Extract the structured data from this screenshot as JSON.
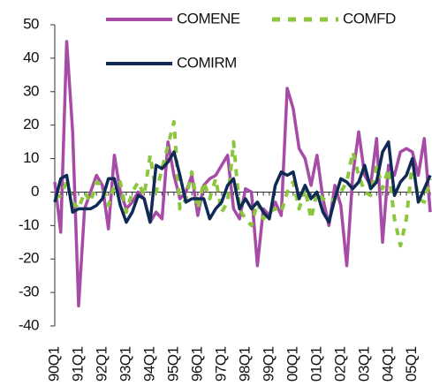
{
  "chart_data": {
    "type": "line",
    "categories": [
      "90Q1",
      null,
      null,
      null,
      "91Q1",
      null,
      null,
      null,
      "92Q1",
      null,
      null,
      null,
      "93Q1",
      null,
      null,
      null,
      "94Q1",
      null,
      null,
      null,
      "95Q1",
      null,
      null,
      null,
      "96Q1",
      null,
      null,
      null,
      "97Q1",
      null,
      null,
      null,
      "98Q1",
      null,
      null,
      null,
      "99Q1",
      null,
      null,
      null,
      "00Q1",
      null,
      null,
      null,
      "01Q1",
      null,
      null,
      null,
      "02Q1",
      null,
      null,
      null,
      "03Q1",
      null,
      null,
      null,
      "04Q1",
      null,
      null,
      null,
      "05Q1",
      null,
      null,
      null
    ],
    "series": [
      {
        "name": "COMENE",
        "color": "#a64ca6",
        "dashed": false,
        "values": [
          3,
          -12,
          45,
          18,
          -34,
          -5,
          0,
          5,
          2,
          -11,
          11,
          0,
          -5,
          -3,
          0,
          -2,
          -9,
          -6,
          -8,
          15,
          5,
          -2,
          0,
          5,
          -7,
          2,
          4,
          5,
          8,
          11,
          -5,
          -8,
          1,
          0,
          -22,
          -5,
          -7,
          -3,
          -7,
          31,
          25,
          13,
          10,
          2,
          11,
          -2,
          -10,
          2,
          -4,
          -22,
          5,
          18,
          5,
          2,
          16,
          -15,
          8,
          5,
          12,
          13,
          12,
          5,
          16,
          -6
        ]
      },
      {
        "name": "COMFD",
        "color": "#8cc63e",
        "dashed": true,
        "values": [
          -2,
          -1,
          3,
          -3,
          -5,
          0,
          -3,
          3,
          2,
          -4,
          2,
          3,
          -6,
          0,
          3,
          -1,
          11,
          0,
          7,
          14,
          21,
          -5,
          -2,
          6,
          -5,
          3,
          -2,
          4,
          -6,
          -3,
          15,
          -5,
          -8,
          -10,
          -3,
          -8,
          -6,
          -5,
          -6,
          0,
          3,
          -5,
          1,
          -8,
          0,
          -2,
          -3,
          -2,
          0,
          3,
          12,
          5,
          0,
          -1,
          8,
          1,
          7,
          -8,
          -16,
          -8,
          9,
          -2,
          -3,
          4
        ]
      },
      {
        "name": "COMIRM",
        "color": "#0f2a55",
        "dashed": false,
        "values": [
          -3,
          4,
          5,
          -6,
          -5,
          -5,
          -5,
          -4,
          -2,
          4,
          4,
          -4,
          -9,
          -6,
          -1,
          -2,
          -9,
          8,
          7,
          9,
          12,
          5,
          -3,
          -2,
          -2,
          -2,
          -8,
          -5,
          -3,
          2,
          4,
          -5,
          -2,
          -5,
          -3,
          -6,
          -8,
          2,
          6,
          5,
          6,
          -2,
          2,
          -2,
          0,
          -6,
          -9,
          -2,
          4,
          3,
          1,
          3,
          8,
          1,
          3,
          12,
          15,
          -1,
          3,
          5,
          10,
          -3,
          1,
          5
        ]
      }
    ],
    "ylim": [
      -40,
      50
    ],
    "yticks": [
      -40,
      -30,
      -20,
      -10,
      0,
      10,
      20,
      30,
      40,
      50
    ]
  }
}
